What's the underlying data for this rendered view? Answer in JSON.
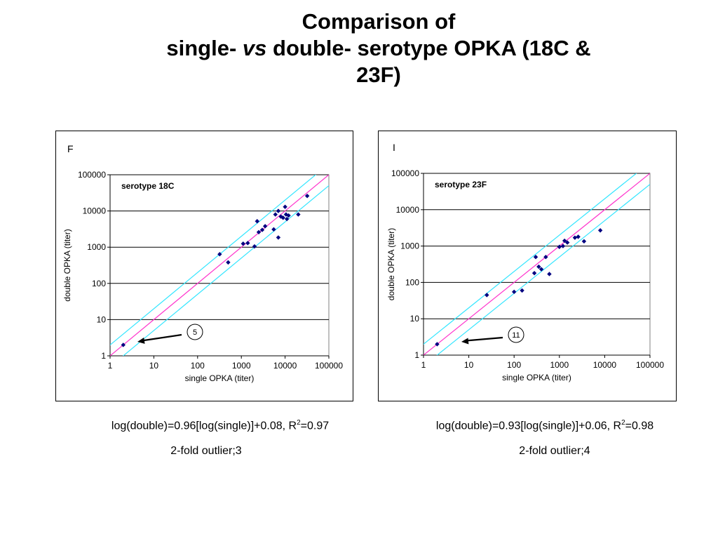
{
  "slide": {
    "title_line1": "Comparison of",
    "title_line2_a": "single-",
    "title_line2_vs": "vs",
    "title_line2_b": "double- serotype OPKA (18C &",
    "title_line3": "23F)"
  },
  "colors": {
    "identity_line": "#ff33cc",
    "twofold_band": "#33e6ff",
    "points": "#000080",
    "gridlines": "#000000"
  },
  "chart_data": [
    {
      "type": "scatter",
      "panel_letter": "F",
      "series_label": "serotype 18C",
      "xlabel": "single OPKA (titer)",
      "ylabel": "double OPKA (titer)",
      "scale": "log",
      "xlim": [
        1,
        100000
      ],
      "ylim": [
        1,
        100000
      ],
      "x_ticks": [
        "1",
        "10",
        "100",
        "1000",
        "10000",
        "100000"
      ],
      "y_ticks": [
        "1",
        "10",
        "100",
        "1000",
        "10000",
        "100000"
      ],
      "grid": "horizontal",
      "callout": "5",
      "caption_eq_prefix": "log(double)=0.96[log(single)]+0.08, R",
      "caption_eq_sup": "2",
      "caption_eq_suffix": "=0.97",
      "caption_outlier": "2-fold outlier;3",
      "points": [
        {
          "x": 2,
          "y": 2
        },
        {
          "x": 320,
          "y": 640
        },
        {
          "x": 500,
          "y": 380
        },
        {
          "x": 1100,
          "y": 1250
        },
        {
          "x": 1400,
          "y": 1300
        },
        {
          "x": 2000,
          "y": 1050
        },
        {
          "x": 2300,
          "y": 5200
        },
        {
          "x": 2500,
          "y": 2600
        },
        {
          "x": 3000,
          "y": 3000
        },
        {
          "x": 3500,
          "y": 3800
        },
        {
          "x": 5500,
          "y": 3100
        },
        {
          "x": 6000,
          "y": 8000
        },
        {
          "x": 7000,
          "y": 10000
        },
        {
          "x": 7000,
          "y": 1850
        },
        {
          "x": 8000,
          "y": 7000
        },
        {
          "x": 9000,
          "y": 6500
        },
        {
          "x": 10000,
          "y": 13000
        },
        {
          "x": 10500,
          "y": 8000
        },
        {
          "x": 11000,
          "y": 6000
        },
        {
          "x": 12000,
          "y": 7500
        },
        {
          "x": 20000,
          "y": 8000
        },
        {
          "x": 32000,
          "y": 26000
        }
      ]
    },
    {
      "type": "scatter",
      "panel_letter": "I",
      "series_label": "serotype 23F",
      "xlabel": "single OPKA (titer)",
      "ylabel": "double OPKA (titer)",
      "scale": "log",
      "xlim": [
        1,
        100000
      ],
      "ylim": [
        1,
        100000
      ],
      "x_ticks": [
        "1",
        "10",
        "100",
        "1000",
        "10000",
        "100000"
      ],
      "y_ticks": [
        "1",
        "10",
        "100",
        "1000",
        "10000",
        "100000"
      ],
      "grid": "horizontal",
      "callout": "11",
      "caption_eq_prefix": "log(double)=0.93[log(single)]+0.06, R",
      "caption_eq_sup": "2",
      "caption_eq_suffix": "=0.98",
      "caption_outlier": "2-fold outlier;4",
      "points": [
        {
          "x": 2,
          "y": 2
        },
        {
          "x": 25,
          "y": 45
        },
        {
          "x": 100,
          "y": 55
        },
        {
          "x": 150,
          "y": 60
        },
        {
          "x": 280,
          "y": 180
        },
        {
          "x": 300,
          "y": 500
        },
        {
          "x": 350,
          "y": 270
        },
        {
          "x": 400,
          "y": 230
        },
        {
          "x": 500,
          "y": 500
        },
        {
          "x": 600,
          "y": 170
        },
        {
          "x": 1000,
          "y": 950
        },
        {
          "x": 1200,
          "y": 1000
        },
        {
          "x": 1300,
          "y": 1400
        },
        {
          "x": 1500,
          "y": 1250
        },
        {
          "x": 2200,
          "y": 1700
        },
        {
          "x": 2600,
          "y": 1800
        },
        {
          "x": 3500,
          "y": 1350
        },
        {
          "x": 8000,
          "y": 2700
        }
      ]
    }
  ]
}
